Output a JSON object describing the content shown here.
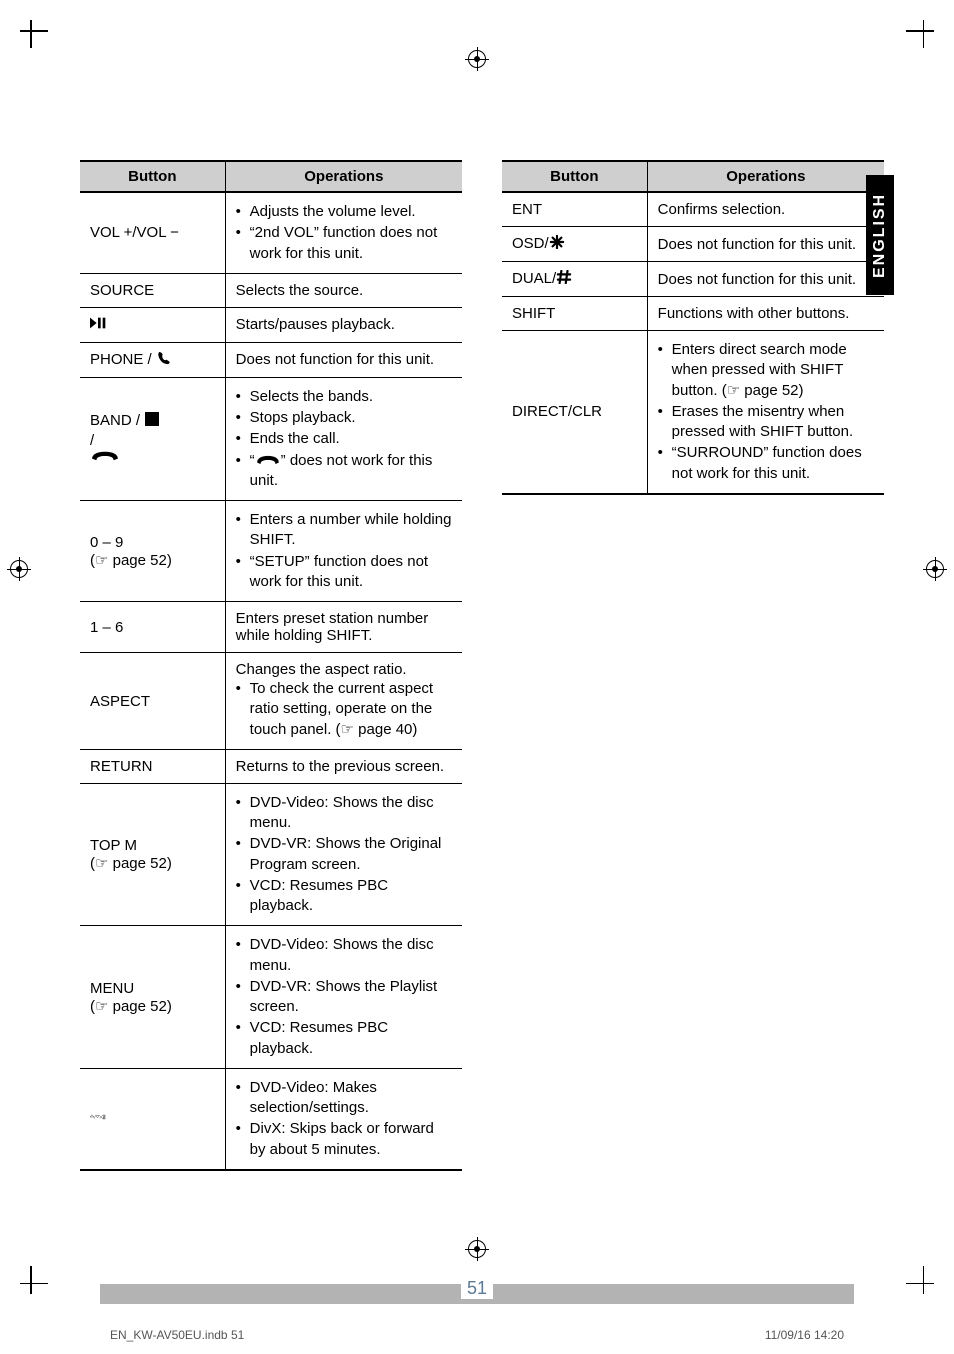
{
  "lang_tab": "ENGLISH",
  "page_number": "51",
  "footer_left": "EN_KW-AV50EU.indb   51",
  "footer_right": "11/09/16   14:20",
  "table_shared": {
    "col_button": "Button",
    "col_ops": "Operations",
    "cell_font_size": 15,
    "header_bg": "#cfcfcf",
    "border_color": "#000000"
  },
  "left_table": {
    "rows": [
      {
        "button_text": "VOL +/VOL −",
        "ops": [
          "Adjusts the volume level.",
          "“2nd VOL” function does not work for this unit."
        ]
      },
      {
        "button_text": "SOURCE",
        "plain": "Selects the source."
      },
      {
        "button_symbol": "play-pause",
        "plain": "Starts/pauses playback."
      },
      {
        "button_text": "PHONE / ",
        "button_symbol_after": "phone",
        "plain": "Does not function for this unit."
      },
      {
        "button_text": "BAND / ",
        "button_symbol_after": "stop",
        "button_second_symbol": "hangup",
        "ops": [
          "Selects the bands.",
          "Stops playback.",
          "Ends the call."
        ],
        "ops_with_icon": {
          "pre": "“",
          "icon": "hangup2",
          "post": "” does not work for this unit."
        }
      },
      {
        "button_text": "0 – 9",
        "button_sub": "(☞ page 52)",
        "ops": [
          "Enters a number while holding SHIFT.",
          "“SETUP” function does not work for this unit."
        ]
      },
      {
        "button_text": "1 – 6",
        "plain": "Enters preset station number while holding SHIFT."
      },
      {
        "button_text": "ASPECT",
        "plain_first": "Changes the aspect ratio.",
        "ops": [
          "To check the current aspect ratio setting, operate on the touch panel. (☞ page 40)"
        ]
      },
      {
        "button_text": "RETURN",
        "plain": "Returns to the previous screen."
      },
      {
        "button_text": "TOP M",
        "button_sub": "(☞ page 52)",
        "ops": [
          "DVD-Video: Shows the disc menu.",
          "DVD-VR: Shows the Original Program screen.",
          "VCD: Resumes PBC playback."
        ]
      },
      {
        "button_text": "MENU",
        "button_sub": "(☞ page 52)",
        "ops": [
          "DVD-Video: Shows the disc menu.",
          "DVD-VR: Shows the Playlist screen.",
          "VCD: Resumes PBC playback."
        ]
      },
      {
        "button_symbol": "dpad",
        "ops": [
          "DVD-Video: Makes selection/settings.",
          "DivX: Skips back or forward by about 5 minutes."
        ]
      }
    ]
  },
  "right_table": {
    "rows": [
      {
        "button_text": "ENT",
        "plain": "Confirms selection."
      },
      {
        "button_text": "OSD/",
        "button_symbol_after": "star",
        "plain": "Does not function for this unit."
      },
      {
        "button_text": "DUAL/",
        "button_symbol_after": "hash",
        "plain": "Does not function for this unit."
      },
      {
        "button_text": "SHIFT",
        "plain": "Functions with other buttons."
      },
      {
        "button_text": "DIRECT/CLR",
        "ops": [
          "Enters direct search mode when pressed with SHIFT button. (☞ page 52)",
          "Erases the misentry when pressed with SHIFT button.",
          "“SURROUND” function does not work for this unit."
        ]
      }
    ]
  }
}
